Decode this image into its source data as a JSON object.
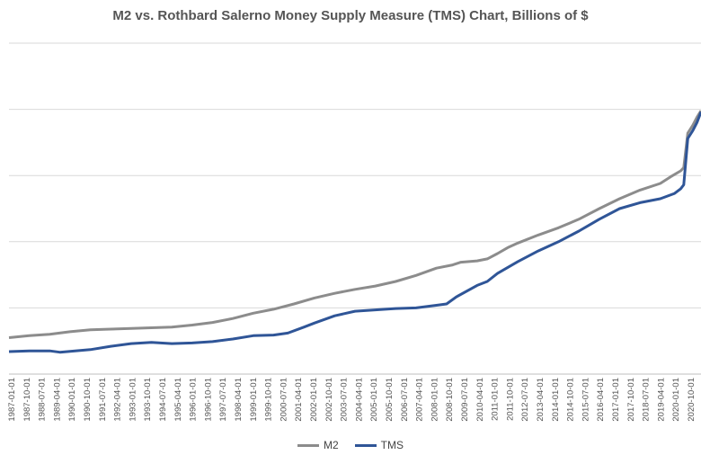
{
  "chart_data": {
    "type": "line",
    "title": "M2 vs. Rothbard Salerno Money Supply Measure (TMS) Chart, Billions of $",
    "xlabel": "",
    "ylabel": "",
    "x_tick_labels": [
      "1987-01-01",
      "1987-10-01",
      "1988-07-01",
      "1989-04-01",
      "1990-01-01",
      "1990-10-01",
      "1991-07-01",
      "1992-04-01",
      "1993-01-01",
      "1993-10-01",
      "1994-07-01",
      "1995-04-01",
      "1996-01-01",
      "1996-10-01",
      "1997-07-01",
      "1998-04-01",
      "1999-01-01",
      "1999-10-01",
      "2000-07-01",
      "2001-04-01",
      "2002-01-01",
      "2002-10-01",
      "2003-07-01",
      "2004-04-01",
      "2005-01-01",
      "2005-10-01",
      "2006-07-01",
      "2007-04-01",
      "2008-01-01",
      "2008-10-01",
      "2009-07-01",
      "2010-04-01",
      "2011-01-01",
      "2011-10-01",
      "2012-07-01",
      "2013-04-01",
      "2014-01-01",
      "2014-10-01",
      "2015-07-01",
      "2016-04-01",
      "2017-01-01",
      "2017-10-01",
      "2018-07-01",
      "2019-04-01",
      "2020-01-01",
      "2020-10-01"
    ],
    "x_range": [
      1987.0,
      2021.0
    ],
    "y_range": [
      0,
      25000
    ],
    "y_ticks_shown": false,
    "grid": true,
    "legend_position": "bottom",
    "series": [
      {
        "name": "M2",
        "color": "#8c8c8c",
        "points": [
          [
            1987.0,
            2750
          ],
          [
            1988.0,
            2900
          ],
          [
            1989.0,
            3000
          ],
          [
            1990.0,
            3200
          ],
          [
            1991.0,
            3350
          ],
          [
            1992.0,
            3400
          ],
          [
            1993.0,
            3450
          ],
          [
            1994.0,
            3500
          ],
          [
            1995.0,
            3550
          ],
          [
            1996.0,
            3700
          ],
          [
            1997.0,
            3900
          ],
          [
            1998.0,
            4200
          ],
          [
            1999.0,
            4600
          ],
          [
            2000.0,
            4900
          ],
          [
            2001.0,
            5300
          ],
          [
            2002.0,
            5750
          ],
          [
            2003.0,
            6100
          ],
          [
            2004.0,
            6400
          ],
          [
            2005.0,
            6650
          ],
          [
            2006.0,
            7000
          ],
          [
            2007.0,
            7450
          ],
          [
            2008.0,
            8000
          ],
          [
            2008.8,
            8250
          ],
          [
            2009.2,
            8450
          ],
          [
            2010.0,
            8550
          ],
          [
            2010.5,
            8700
          ],
          [
            2011.0,
            9100
          ],
          [
            2011.5,
            9550
          ],
          [
            2012.0,
            9900
          ],
          [
            2013.0,
            10500
          ],
          [
            2014.0,
            11050
          ],
          [
            2015.0,
            11700
          ],
          [
            2016.0,
            12500
          ],
          [
            2017.0,
            13250
          ],
          [
            2018.0,
            13900
          ],
          [
            2019.0,
            14400
          ],
          [
            2019.5,
            14900
          ],
          [
            2020.0,
            15350
          ],
          [
            2020.15,
            15600
          ],
          [
            2020.35,
            18200
          ],
          [
            2020.6,
            18800
          ],
          [
            2020.8,
            19400
          ],
          [
            2021.0,
            19900
          ]
        ]
      },
      {
        "name": "TMS",
        "color": "#2f5597",
        "points": [
          [
            1987.0,
            1700
          ],
          [
            1988.0,
            1750
          ],
          [
            1989.0,
            1750
          ],
          [
            1989.5,
            1650
          ],
          [
            1990.0,
            1720
          ],
          [
            1991.0,
            1850
          ],
          [
            1992.0,
            2100
          ],
          [
            1993.0,
            2300
          ],
          [
            1994.0,
            2400
          ],
          [
            1995.0,
            2300
          ],
          [
            1996.0,
            2350
          ],
          [
            1997.0,
            2450
          ],
          [
            1998.0,
            2650
          ],
          [
            1999.0,
            2900
          ],
          [
            2000.0,
            2950
          ],
          [
            2000.7,
            3100
          ],
          [
            2001.5,
            3550
          ],
          [
            2002.0,
            3850
          ],
          [
            2003.0,
            4400
          ],
          [
            2004.0,
            4750
          ],
          [
            2005.0,
            4850
          ],
          [
            2006.0,
            4950
          ],
          [
            2007.0,
            5000
          ],
          [
            2008.0,
            5200
          ],
          [
            2008.5,
            5300
          ],
          [
            2009.0,
            5850
          ],
          [
            2010.0,
            6700
          ],
          [
            2010.5,
            7000
          ],
          [
            2011.0,
            7600
          ],
          [
            2012.0,
            8500
          ],
          [
            2013.0,
            9300
          ],
          [
            2014.0,
            10000
          ],
          [
            2015.0,
            10800
          ],
          [
            2016.0,
            11700
          ],
          [
            2017.0,
            12500
          ],
          [
            2018.0,
            12950
          ],
          [
            2019.0,
            13250
          ],
          [
            2019.7,
            13650
          ],
          [
            2020.0,
            14000
          ],
          [
            2020.15,
            14300
          ],
          [
            2020.35,
            17800
          ],
          [
            2020.6,
            18400
          ],
          [
            2020.8,
            19000
          ],
          [
            2021.0,
            19800
          ]
        ]
      }
    ]
  }
}
